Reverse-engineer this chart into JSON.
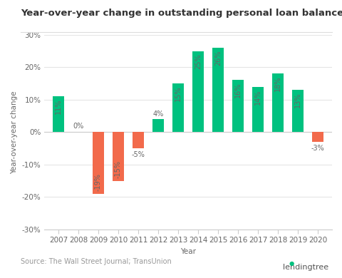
{
  "title": "Year-over-year change in outstanding personal loan balances in the U.S.",
  "xlabel": "Year",
  "ylabel": "Year-over-year change",
  "source": "Source: The Wall Street Journal; TransUnion",
  "years": [
    2007,
    2008,
    2009,
    2010,
    2011,
    2012,
    2013,
    2014,
    2015,
    2016,
    2017,
    2018,
    2019,
    2020
  ],
  "values": [
    11,
    0,
    -19,
    -15,
    -5,
    4,
    15,
    25,
    26,
    16,
    14,
    18,
    13,
    -3
  ],
  "colors": [
    "#00c17f",
    "#00c17f",
    "#f26a4b",
    "#f26a4b",
    "#f26a4b",
    "#00c17f",
    "#00c17f",
    "#00c17f",
    "#00c17f",
    "#00c17f",
    "#00c17f",
    "#00c17f",
    "#00c17f",
    "#f26a4b"
  ],
  "ylim": [
    -30,
    30
  ],
  "yticks": [
    -30,
    -20,
    -10,
    0,
    10,
    20,
    30
  ],
  "background_color": "#ffffff",
  "grid_color": "#e5e5e5",
  "title_fontsize": 9.5,
  "label_fontsize": 7.5,
  "tick_fontsize": 7.5,
  "bar_label_fontsize": 7,
  "source_fontsize": 7,
  "lendingtree_fontsize": 8,
  "bar_width": 0.6,
  "label_color": "#666666",
  "title_color": "#333333",
  "source_color": "#999999"
}
